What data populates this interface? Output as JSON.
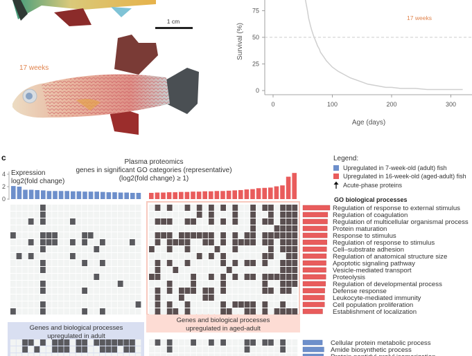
{
  "panel_b": {
    "scale_bar_label": "1 cm",
    "fish_label": "17 weeks"
  },
  "chart_data": [
    {
      "type": "line",
      "title": "",
      "annotation": "17 weeks",
      "xlabel": "Age (days)",
      "ylabel": "Survival (%)",
      "xlim": [
        -5,
        335
      ],
      "ylim": [
        0,
        100
      ],
      "x_ticks": [
        "0",
        "100",
        "200",
        "300"
      ],
      "y_ticks": [
        "0",
        "25",
        "50",
        "75"
      ],
      "reference_line": {
        "y": 50,
        "style": "dashed"
      },
      "line_color": "#cfcfcf",
      "annotation_color": "#e0834d",
      "series": [
        {
          "x": [
            48,
            52,
            55,
            58,
            60,
            63,
            65,
            68,
            70,
            73,
            75,
            78,
            80,
            85,
            90,
            95,
            100,
            110,
            120,
            130,
            140,
            150,
            160,
            170,
            180,
            190,
            200,
            215,
            240,
            260,
            290,
            320
          ],
          "y": [
            100,
            92,
            84,
            75,
            68,
            61,
            57,
            52,
            49,
            45,
            42,
            39,
            36,
            32,
            28,
            25,
            22,
            18,
            15,
            12,
            10,
            8,
            6,
            5,
            4,
            3,
            3,
            2,
            2,
            1,
            1,
            1
          ]
        }
      ]
    },
    {
      "type": "bar",
      "title": "Plasma proteomics",
      "subtitle": [
        "genes in significant GO categories (representative)",
        "(log2(fold change) ≥ 1)"
      ],
      "ylabel": [
        "Expression",
        "log2(fold change)"
      ],
      "ylim": [
        0,
        4.5
      ],
      "y_ticks": [
        "0",
        "2",
        "4"
      ],
      "series": [
        {
          "group": "adult",
          "color": "#6d8fcb",
          "values": [
            2.1,
            2.0,
            1.5,
            1.5,
            1.45,
            1.4,
            1.3,
            1.3,
            1.3,
            1.3,
            1.25,
            1.25,
            1.2,
            1.2,
            1.2,
            1.15,
            1.1,
            1.1,
            1.05,
            1.05,
            1.0,
            1.0
          ]
        },
        {
          "group": "aged-adult",
          "color": "#e95c5c",
          "values": [
            1.0,
            1.05,
            1.05,
            1.1,
            1.1,
            1.15,
            1.15,
            1.2,
            1.2,
            1.25,
            1.25,
            1.3,
            1.3,
            1.35,
            1.4,
            1.45,
            1.55,
            1.6,
            1.75,
            1.8,
            1.85,
            2.05,
            2.2,
            3.6,
            4.2
          ]
        }
      ]
    },
    {
      "type": "heatmap",
      "name": "gene-go-membership",
      "filled_color_adult": "#5a5a5e",
      "filled_color_aged": "#5a4f50",
      "empty_color": "#f2f4f3",
      "adult_columns": 22,
      "aged_columns": 25,
      "adult_rows_filled": [
        [
          5
        ],
        [
          5
        ],
        [
          3,
          5,
          10
        ],
        [],
        [
          0,
          5,
          6,
          7,
          12,
          13
        ],
        [
          3,
          5,
          6,
          7,
          10,
          12,
          15,
          20
        ],
        [
          5,
          14
        ],
        [
          1,
          3,
          10
        ],
        [
          5,
          12,
          15
        ],
        [
          5
        ],
        [
          14
        ],
        [
          5,
          18
        ],
        [
          5,
          12
        ],
        [],
        [
          5,
          21
        ],
        [
          0,
          5,
          12,
          15
        ]
      ],
      "aged_rows_filled": [
        [
          1,
          3,
          6,
          8,
          10,
          12,
          14,
          17,
          19,
          20,
          22,
          23,
          24
        ],
        [
          8,
          10,
          14,
          17,
          20,
          22,
          23,
          24
        ],
        [
          1,
          2,
          3,
          6,
          7,
          10,
          12,
          14,
          17,
          19,
          20,
          22,
          23,
          24
        ],
        [
          17,
          21,
          22,
          23,
          24
        ],
        [
          1,
          2,
          3,
          5,
          6,
          7,
          8,
          9,
          10,
          12,
          14,
          16,
          17,
          19,
          20,
          21,
          22,
          23,
          24
        ],
        [
          1,
          3,
          4,
          5,
          6,
          9,
          10,
          12,
          14,
          15,
          16,
          17,
          19,
          20,
          22,
          23,
          24
        ],
        [
          0,
          3,
          6,
          11,
          14,
          20,
          22,
          23,
          24
        ],
        [
          8,
          10,
          12,
          19,
          20,
          23,
          24
        ],
        [
          1,
          3,
          6,
          12,
          14,
          16,
          17,
          19,
          22,
          23,
          24
        ],
        [
          1,
          4,
          13,
          22,
          23,
          24
        ],
        [
          0,
          1,
          7,
          10,
          12,
          14,
          16,
          17,
          19,
          20,
          21,
          22,
          23,
          24
        ],
        [
          3,
          7,
          12,
          19,
          22,
          23,
          24
        ],
        [
          1,
          3,
          5,
          6,
          7,
          9,
          10,
          12,
          19,
          20,
          22,
          23
        ],
        [
          1,
          5,
          9,
          10
        ],
        [
          1,
          3,
          6,
          12,
          14,
          15,
          16,
          17,
          19,
          22
        ],
        [
          1,
          3,
          4,
          6,
          12,
          13,
          16,
          17,
          19,
          21,
          22,
          23,
          24
        ]
      ],
      "adult_lower_rows_filled": [
        [
          2,
          3,
          5,
          7,
          8,
          9,
          11,
          12,
          14,
          15,
          16,
          17,
          18,
          19,
          20
        ],
        [
          2,
          4,
          7,
          8,
          9,
          11,
          12,
          15,
          16,
          17,
          19,
          20
        ],
        []
      ],
      "aged_lower_rows_filled": [
        [
          1,
          3,
          7,
          10,
          12,
          16,
          17,
          19,
          20,
          22
        ],
        [
          3,
          16,
          22
        ],
        []
      ]
    }
  ],
  "panel_c": {
    "panel_letter": "c",
    "title": "Plasma proteomics",
    "subtitle_line1": "genes in significant GO categories (representative)",
    "subtitle_line2": "(log2(fold change) ≥ 1)",
    "y_label_line1": "Expression",
    "y_label_line2": "log2(fold change)",
    "legend": {
      "title": "Legend:",
      "items": [
        {
          "label": "Upregulated in 7-week-old (adult) fish",
          "color": "#6d8fcb",
          "icon": "square"
        },
        {
          "label": "Upregulated in 16-week-old (aged-adult) fish",
          "color": "#e95c5c",
          "icon": "square"
        },
        {
          "label": "Acute-phase proteins",
          "icon": "arrow-up-icon"
        }
      ]
    },
    "go_header": "GO biological processes",
    "go_aged": [
      {
        "label": "Regulation of response to external stimulus",
        "bar": 1.0
      },
      {
        "label": "Regulation of coagulation",
        "bar": 0.92
      },
      {
        "label": "Regulation of multicellular organismal process",
        "bar": 0.91
      },
      {
        "label": "Protein maturation",
        "bar": 0.9
      },
      {
        "label": "Response to stimulus",
        "bar": 0.9
      },
      {
        "label": "Regulation of response to stimulus",
        "bar": 0.89
      },
      {
        "label": "Cell–substrate adhesion",
        "bar": 0.88
      },
      {
        "label": "Regulation of anatomical structure size",
        "bar": 0.87
      },
      {
        "label": "Apoptotic signaling pathway",
        "bar": 0.86
      },
      {
        "label": "Vesicle-mediated transport",
        "bar": 0.86
      },
      {
        "label": "Proteolysis",
        "bar": 0.85
      },
      {
        "label": "Regulation of developmental process",
        "bar": 0.84
      },
      {
        "label": "Defense response",
        "bar": 0.81
      },
      {
        "label": "Leukocyte-mediated immunity",
        "bar": 0.8
      },
      {
        "label": "Cell population proliferation",
        "bar": 0.8
      },
      {
        "label": "Establishment of localization",
        "bar": 0.73
      }
    ],
    "go_adult": [
      {
        "label": "Cellular protein metabolic process",
        "bar": 0.72
      },
      {
        "label": "Amide biosynthetic process",
        "bar": 0.78
      },
      {
        "label": "Protein peptidyl-prolyl isomerization",
        "bar": 0.76
      }
    ],
    "aged_box_line1": "Genes and biological processes",
    "aged_box_line2": "upregulated in aged-adult",
    "adult_box_line1": "Genes and biological processes",
    "adult_box_line2": "upregulated in adult",
    "colors": {
      "blue_box": "#d9dff1",
      "pink_box": "#fddcd4",
      "pink_border": "#f7c9be"
    }
  }
}
